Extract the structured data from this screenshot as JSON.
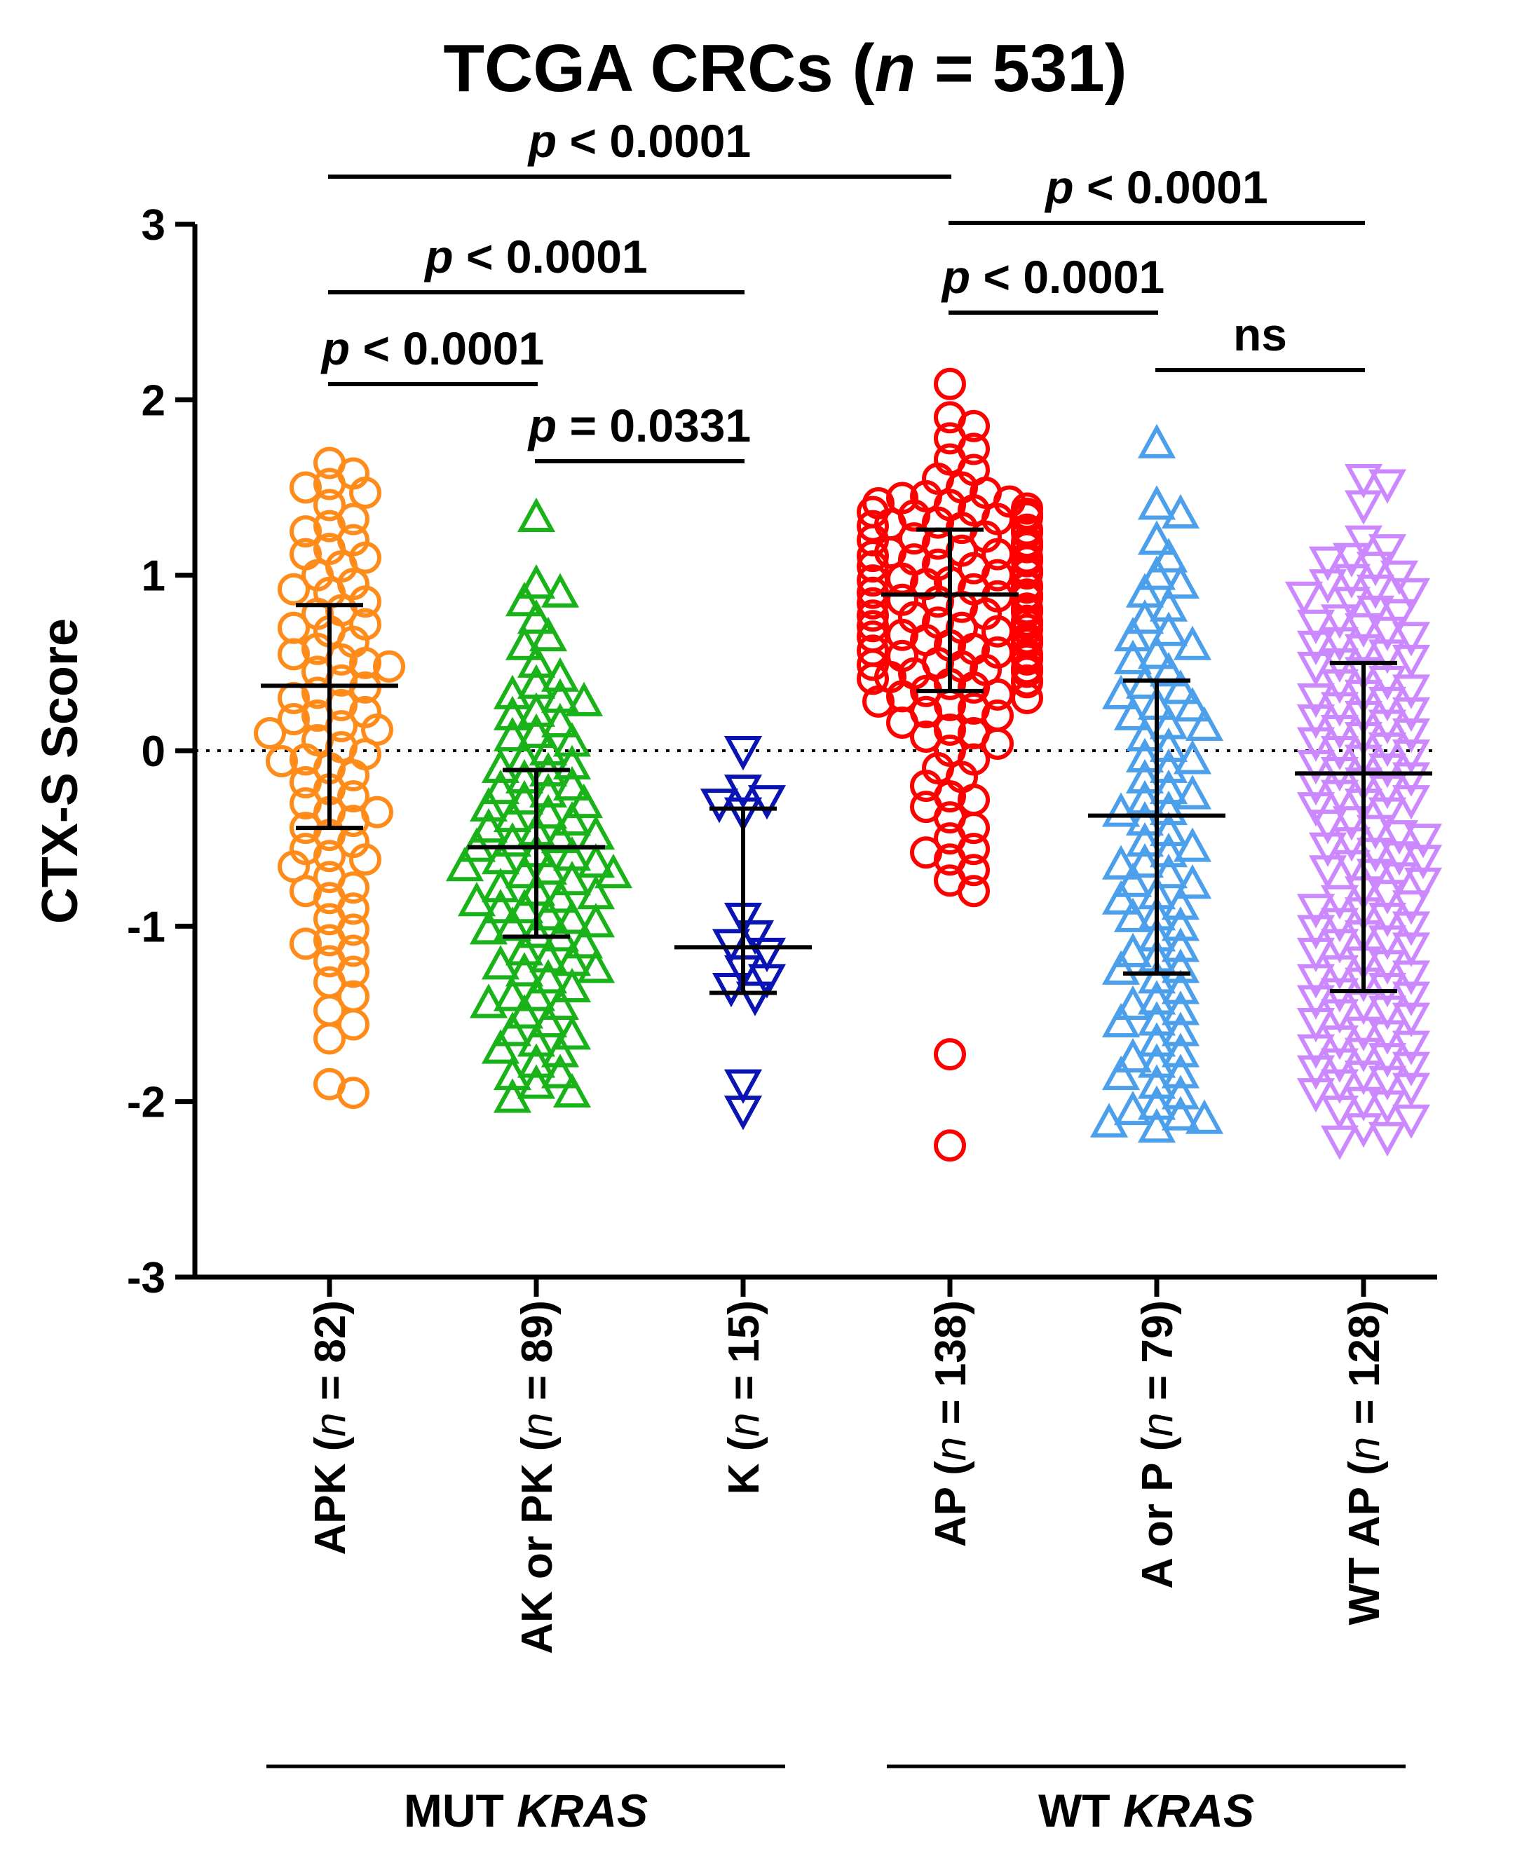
{
  "chart_data": {
    "type": "scatter",
    "title": {
      "prefix": "TCGA CRCs (",
      "italic": "n",
      "suffix": " = 531)"
    },
    "xlabel": "",
    "ylabel": "CTX-S Score",
    "ylim": [
      -3,
      3
    ],
    "yticks": [
      "3",
      "2",
      "1",
      "0",
      "-1",
      "-2",
      "-3"
    ],
    "reference_line_y": 0,
    "categories": [
      {
        "main": "APK",
        "n": "82",
        "marker": "circle",
        "color": "#FF8C1A",
        "mean": 0.37,
        "sd_low": -0.44,
        "sd_high": 0.83,
        "values": [
          1.64,
          1.58,
          1.52,
          1.47,
          1.5,
          1.4,
          1.32,
          1.28,
          1.25,
          1.2,
          1.15,
          1.1,
          1.05,
          1.0,
          0.95,
          0.9,
          0.85,
          0.8,
          0.78,
          0.72,
          0.68,
          0.62,
          0.58,
          0.55,
          0.52,
          0.48,
          0.45,
          0.4,
          0.36,
          0.33,
          0.3,
          0.26,
          0.22,
          0.18,
          0.14,
          0.1,
          0.06,
          0.02,
          -0.02,
          -0.06,
          -0.1,
          -0.14,
          -0.18,
          -0.22,
          -0.26,
          -0.3,
          -0.35,
          -0.4,
          -0.44,
          -0.48,
          -0.52,
          -0.56,
          -0.6,
          -0.66,
          -0.72,
          -0.78,
          -0.84,
          -0.9,
          -0.96,
          -1.02,
          -1.08,
          -1.14,
          -1.2,
          -1.26,
          -1.32,
          -1.4,
          -1.48,
          -1.56,
          -1.64,
          -1.9,
          -1.95,
          0.5,
          0.7,
          0.2,
          -0.05,
          -0.35,
          -0.8,
          -1.1,
          1.12,
          0.92,
          0.12,
          -0.62
        ]
      },
      {
        "main": "AK or PK",
        "n": "89",
        "marker": "triangle-up",
        "color": "#19B219",
        "mean": -0.55,
        "sd_low": -1.06,
        "sd_high": -0.11,
        "values": [
          1.33,
          0.95,
          0.9,
          0.85,
          0.75,
          0.6,
          0.5,
          0.42,
          0.38,
          0.32,
          0.28,
          0.22,
          0.16,
          0.1,
          0.05,
          0.0,
          -0.04,
          -0.08,
          -0.12,
          -0.16,
          -0.2,
          -0.24,
          -0.28,
          -0.32,
          -0.36,
          -0.4,
          -0.44,
          -0.48,
          -0.52,
          -0.55,
          -0.58,
          -0.62,
          -0.66,
          -0.7,
          -0.74,
          -0.78,
          -0.82,
          -0.86,
          -0.9,
          -0.94,
          -0.98,
          -1.02,
          -1.06,
          -1.1,
          -1.14,
          -1.18,
          -1.22,
          -1.26,
          -1.3,
          -1.35,
          -1.4,
          -1.45,
          -1.5,
          -1.55,
          -1.6,
          -1.66,
          -1.72,
          -1.78,
          -1.84,
          -1.9,
          -1.95,
          -1.98,
          0.2,
          0.08,
          -0.1,
          -0.3,
          -0.5,
          -0.6,
          -0.7,
          -0.8,
          -0.9,
          -1.0,
          -1.2,
          -1.4,
          -1.7,
          -1.85,
          0.65,
          0.3,
          -0.22,
          -0.46,
          -0.64,
          -0.84,
          -1.04,
          -1.24,
          -1.44,
          -1.62,
          -0.38,
          -0.68,
          -0.96
        ]
      },
      {
        "main": "K",
        "n": "15",
        "marker": "triangle-down",
        "color": "#0A14B4",
        "mean": -1.12,
        "sd_low": -1.38,
        "sd_high": -0.33,
        "values": [
          0.0,
          -0.22,
          -0.3,
          -0.35,
          -0.28,
          -0.95,
          -1.05,
          -1.1,
          -1.15,
          -1.25,
          -1.3,
          -1.35,
          -1.4,
          -1.9,
          -2.05
        ]
      },
      {
        "main": "AP",
        "n": "138",
        "marker": "circle",
        "color": "#FF0000",
        "mean": 0.89,
        "sd_low": 0.34,
        "sd_high": 1.26,
        "values": [
          2.09,
          1.9,
          1.85,
          1.78,
          1.72,
          1.66,
          1.6,
          1.55,
          1.5,
          1.47,
          1.44,
          1.42,
          1.4,
          1.38,
          1.36,
          1.34,
          1.32,
          1.3,
          1.28,
          1.26,
          1.24,
          1.22,
          1.2,
          1.18,
          1.16,
          1.14,
          1.12,
          1.1,
          1.08,
          1.06,
          1.04,
          1.02,
          1.0,
          0.98,
          0.96,
          0.94,
          0.92,
          0.9,
          0.88,
          0.86,
          0.84,
          0.82,
          0.8,
          0.78,
          0.76,
          0.74,
          0.72,
          0.7,
          0.68,
          0.66,
          0.64,
          0.62,
          0.6,
          0.58,
          0.56,
          0.54,
          0.52,
          0.5,
          0.48,
          0.46,
          0.44,
          0.42,
          0.4,
          0.38,
          0.36,
          0.34,
          0.32,
          0.3,
          0.28,
          0.26,
          0.24,
          0.2,
          0.16,
          0.12,
          0.08,
          0.04,
          0.0,
          -0.05,
          -0.1,
          -0.15,
          -0.2,
          -0.26,
          -0.32,
          -0.38,
          -0.44,
          -0.5,
          -0.56,
          -0.62,
          -0.68,
          -0.74,
          -0.8,
          -1.73,
          -2.25,
          1.45,
          1.41,
          1.37,
          1.33,
          1.29,
          1.25,
          1.21,
          1.17,
          1.13,
          1.09,
          1.05,
          1.01,
          0.97,
          0.93,
          0.89,
          0.85,
          0.81,
          0.77,
          0.73,
          0.69,
          0.65,
          0.61,
          0.57,
          0.53,
          0.49,
          0.45,
          0.41,
          1.35,
          1.27,
          1.19,
          1.11,
          1.03,
          0.95,
          0.87,
          0.79,
          0.71,
          0.63,
          0.55,
          0.47,
          0.39,
          0.31,
          0.22,
          -0.58,
          -0.28,
          0.1
        ]
      },
      {
        "main": "A or P",
        "n": "79",
        "marker": "triangle-up",
        "color": "#4C9FEA",
        "mean": -0.37,
        "sd_low": -1.27,
        "sd_high": 0.4,
        "values": [
          1.75,
          1.4,
          1.35,
          1.2,
          1.1,
          1.0,
          0.9,
          0.82,
          0.75,
          0.68,
          0.6,
          0.52,
          0.45,
          0.38,
          0.32,
          0.26,
          0.2,
          0.14,
          0.08,
          0.02,
          -0.04,
          -0.1,
          -0.16,
          -0.22,
          -0.28,
          -0.34,
          -0.4,
          -0.46,
          -0.52,
          -0.58,
          -0.64,
          -0.7,
          -0.76,
          -0.82,
          -0.88,
          -0.94,
          -1.0,
          -1.06,
          -1.12,
          -1.18,
          -1.24,
          -1.3,
          -1.36,
          -1.42,
          -1.48,
          -1.54,
          -1.6,
          -1.66,
          -1.72,
          -1.78,
          -1.84,
          -1.9,
          -1.96,
          -2.02,
          -2.08,
          -2.12,
          -2.15,
          0.55,
          0.25,
          -0.05,
          -0.35,
          -0.65,
          -0.95,
          -1.25,
          -1.55,
          -1.85,
          -2.05,
          0.95,
          0.65,
          0.15,
          -0.25,
          -0.55,
          -0.85,
          -1.15,
          -1.45,
          -1.75,
          -2.1,
          0.35,
          -0.75
        ]
      },
      {
        "main": "WT AP",
        "n": "128",
        "marker": "triangle-down",
        "color": "#CC88FF",
        "mean": -0.13,
        "sd_low": -1.37,
        "sd_high": 0.5,
        "values": [
          1.55,
          1.52,
          1.4,
          1.2,
          1.15,
          1.1,
          1.05,
          1.0,
          0.95,
          0.9,
          0.85,
          0.8,
          0.75,
          0.7,
          0.65,
          0.6,
          0.55,
          0.5,
          0.45,
          0.4,
          0.35,
          0.3,
          0.25,
          0.2,
          0.15,
          0.1,
          0.05,
          0.0,
          -0.05,
          -0.1,
          -0.15,
          -0.2,
          -0.25,
          -0.3,
          -0.35,
          -0.4,
          -0.45,
          -0.5,
          -0.55,
          -0.6,
          -0.65,
          -0.7,
          -0.75,
          -0.8,
          -0.85,
          -0.9,
          -0.95,
          -1.0,
          -1.05,
          -1.1,
          -1.15,
          -1.2,
          -1.25,
          -1.3,
          -1.35,
          -1.4,
          -1.45,
          -1.5,
          -1.55,
          -1.6,
          -1.65,
          -1.7,
          -1.75,
          -1.8,
          -1.85,
          -1.9,
          -1.95,
          -2.0,
          -2.05,
          -2.1,
          -2.15,
          -2.2,
          -2.22,
          1.08,
          0.98,
          0.88,
          0.78,
          0.68,
          0.58,
          0.48,
          0.38,
          0.28,
          0.18,
          0.08,
          -0.02,
          -0.12,
          -0.22,
          -0.32,
          -0.42,
          -0.52,
          -0.62,
          -0.72,
          -0.82,
          -0.92,
          -1.02,
          -1.12,
          -1.22,
          -1.32,
          -1.42,
          -1.52,
          -1.62,
          -1.72,
          -1.82,
          -1.92,
          -2.02,
          0.92,
          0.72,
          0.52,
          0.32,
          0.12,
          -0.08,
          -0.28,
          -0.48,
          -0.68,
          -0.88,
          -1.08,
          -1.28,
          -1.48,
          -1.68,
          -1.88,
          0.62,
          0.22,
          -0.18,
          -0.58,
          -0.98,
          -1.38,
          -1.78,
          0.02
        ]
      }
    ],
    "comparisons": [
      {
        "from": 0,
        "to": 3,
        "level": 0,
        "label": "< 0.0001"
      },
      {
        "from": 3,
        "to": 5,
        "level": 1,
        "label": "< 0.0001"
      },
      {
        "from": 0,
        "to": 2,
        "level": 2,
        "label": "< 0.0001"
      },
      {
        "from": 3,
        "to": 4,
        "level": 3,
        "label": "< 0.0001"
      },
      {
        "from": 0,
        "to": 1,
        "level": 4,
        "label": "< 0.0001"
      },
      {
        "from": 4,
        "to": 5,
        "level": 5,
        "label": "ns"
      },
      {
        "from": 1,
        "to": 2,
        "level": 6,
        "label": "= 0.0331"
      }
    ],
    "p_symbol": "p",
    "n_symbol": "n",
    "groups": [
      {
        "prefix": "MUT ",
        "italic": "KRAS",
        "from": 0,
        "to": 2
      },
      {
        "prefix": "WT ",
        "italic": "KRAS",
        "from": 3,
        "to": 5
      }
    ]
  }
}
